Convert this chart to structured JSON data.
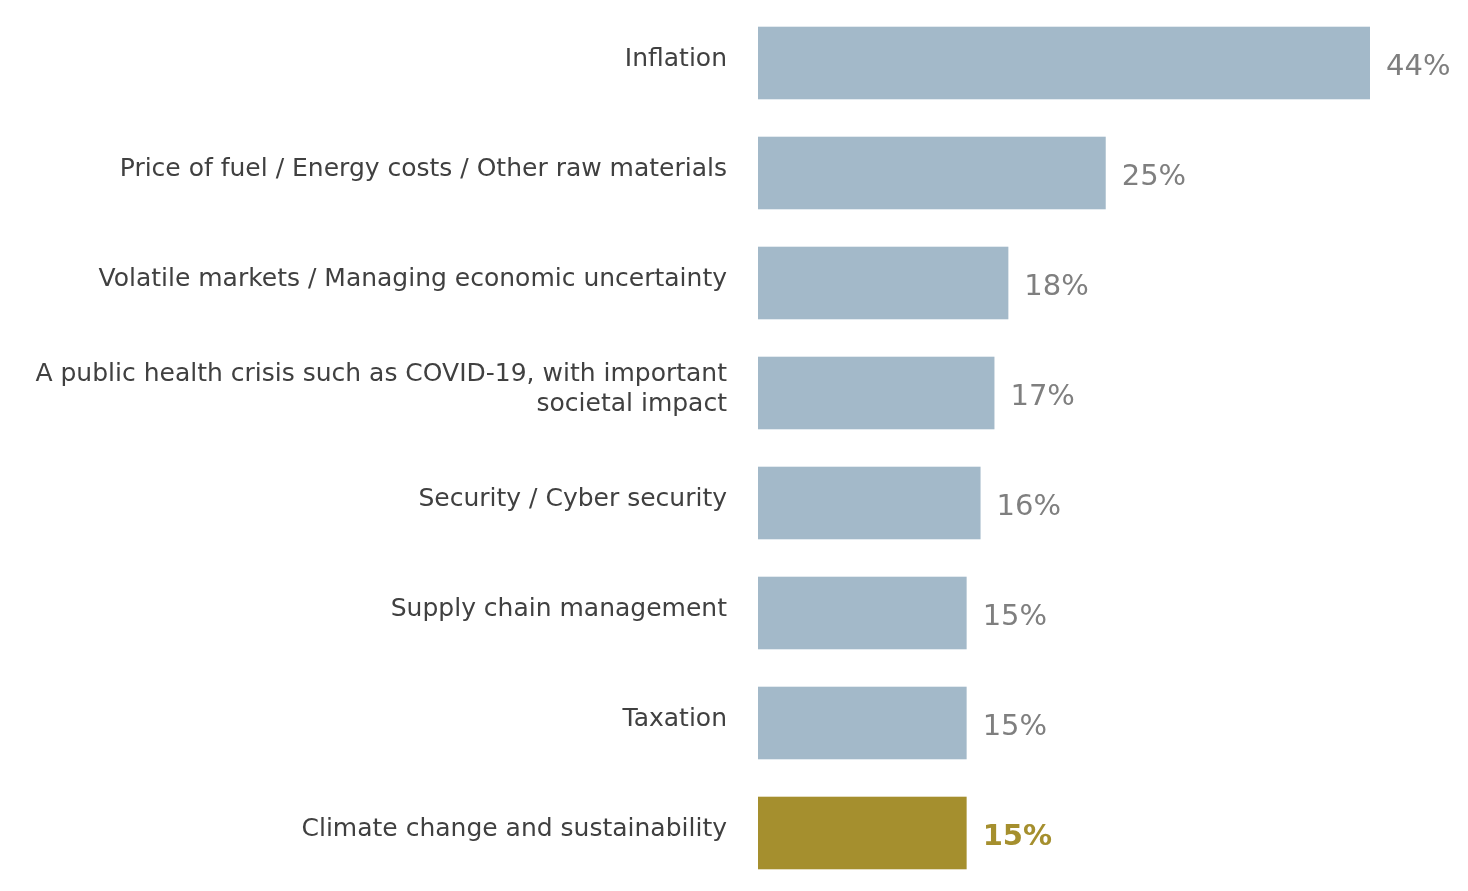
{
  "chart_data": {
    "type": "bar",
    "orientation": "horizontal",
    "categories": [
      "Inflation",
      "Price of fuel / Energy costs / Other raw materials",
      "Volatile markets / Managing economic uncertainty",
      "A public health crisis such as COVID-19, with important societal impact",
      "Security / Cyber security",
      "Supply chain management",
      "Taxation",
      "Climate change and sustainability"
    ],
    "values": [
      44,
      25,
      18,
      17,
      16,
      15,
      15,
      15
    ],
    "value_labels": [
      "44%",
      "25%",
      "18%",
      "17%",
      "16%",
      "15%",
      "15%",
      "15%"
    ],
    "colors": [
      "#a3b9c9",
      "#a3b9c9",
      "#a3b9c9",
      "#a3b9c9",
      "#a3b9c9",
      "#a3b9c9",
      "#a3b9c9",
      "#a58f2e"
    ]
  }
}
